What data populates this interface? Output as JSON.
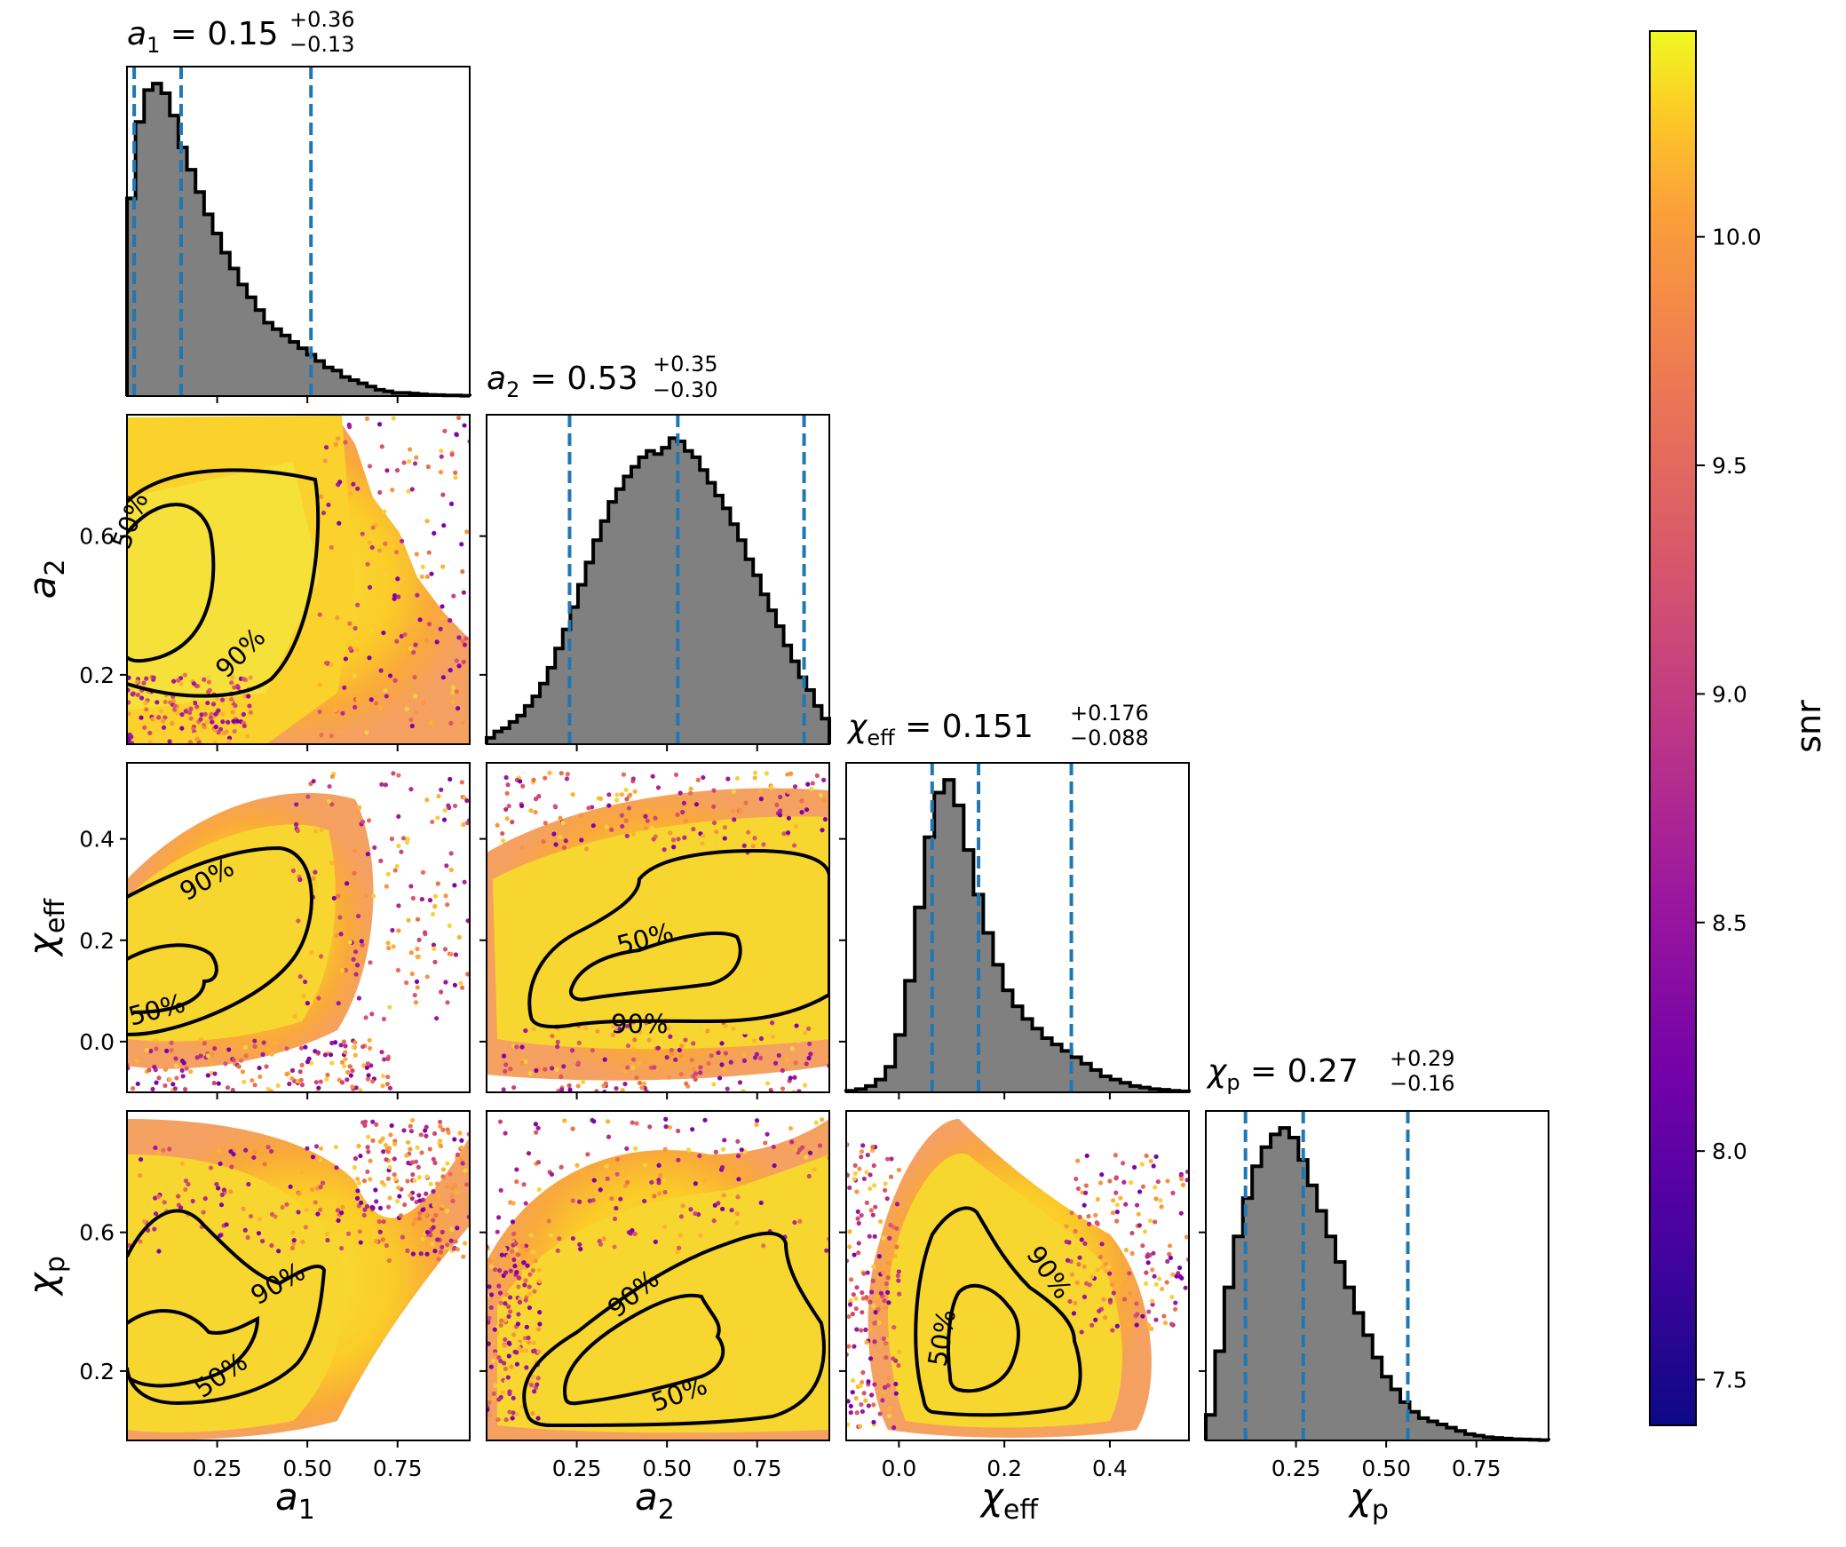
{
  "chart_data": {
    "type": "corner",
    "parameters": [
      {
        "key": "a1",
        "symbol": "a",
        "sub": "1",
        "axis_ticks": [
          "0.25",
          "0.50",
          "0.75"
        ],
        "range": [
          0.0,
          0.95
        ],
        "title": {
          "lhs": "a1",
          "median": "0.15",
          "plus": "+0.36",
          "minus": "−0.13"
        },
        "quantiles": [
          0.02,
          0.15,
          0.51
        ]
      },
      {
        "key": "a2",
        "symbol": "a",
        "sub": "2",
        "axis_ticks": [
          "0.25",
          "0.50",
          "0.75"
        ],
        "range": [
          0.0,
          0.95
        ],
        "title": {
          "lhs": "a2",
          "median": "0.53",
          "plus": "+0.35",
          "minus": "−0.30"
        },
        "quantiles": [
          0.23,
          0.53,
          0.88
        ]
      },
      {
        "key": "chi_eff",
        "symbol": "χ",
        "sub": "eff",
        "axis_ticks": [
          "0.0",
          "0.2",
          "0.4"
        ],
        "range": [
          -0.1,
          0.55
        ],
        "title": {
          "lhs": "χeff",
          "median": "0.151",
          "plus": "+0.176",
          "minus": "−0.088"
        },
        "quantiles": [
          0.063,
          0.151,
          0.327
        ]
      },
      {
        "key": "chi_p",
        "symbol": "χ",
        "sub": "p",
        "axis_ticks": [
          "0.25",
          "0.50",
          "0.75"
        ],
        "range": [
          0.0,
          0.95
        ],
        "title": {
          "lhs": "χp",
          "median": "0.27",
          "plus": "+0.29",
          "minus": "−0.16"
        },
        "quantiles": [
          0.11,
          0.27,
          0.56
        ]
      }
    ],
    "y_axis_ticks": {
      "a2": [
        "0.6",
        "0.2"
      ],
      "chi_eff": [
        "0.4",
        "0.2",
        "0.0"
      ],
      "chi_p": [
        "0.6",
        "0.2"
      ]
    },
    "histograms": {
      "a1": [
        0.62,
        0.86,
        0.96,
        0.98,
        0.95,
        0.88,
        0.78,
        0.71,
        0.64,
        0.57,
        0.51,
        0.45,
        0.4,
        0.35,
        0.31,
        0.27,
        0.23,
        0.21,
        0.19,
        0.17,
        0.15,
        0.13,
        0.11,
        0.09,
        0.08,
        0.06,
        0.05,
        0.04,
        0.03,
        0.02,
        0.015,
        0.01,
        0.01,
        0.008,
        0.006,
        0.004,
        0.003,
        0.002,
        0.002,
        0.001
      ],
      "a2": [
        0.02,
        0.04,
        0.05,
        0.07,
        0.09,
        0.12,
        0.15,
        0.19,
        0.24,
        0.3,
        0.36,
        0.43,
        0.5,
        0.57,
        0.64,
        0.7,
        0.76,
        0.8,
        0.84,
        0.87,
        0.9,
        0.92,
        0.91,
        0.93,
        0.96,
        0.95,
        0.92,
        0.9,
        0.86,
        0.82,
        0.78,
        0.74,
        0.69,
        0.64,
        0.58,
        0.53,
        0.47,
        0.42,
        0.37,
        0.31,
        0.26,
        0.21,
        0.17,
        0.12,
        0.08
      ],
      "chi_eff": [
        0.005,
        0.01,
        0.02,
        0.04,
        0.08,
        0.18,
        0.35,
        0.58,
        0.8,
        0.94,
        0.98,
        0.9,
        0.76,
        0.62,
        0.5,
        0.4,
        0.32,
        0.27,
        0.23,
        0.2,
        0.17,
        0.15,
        0.13,
        0.11,
        0.09,
        0.07,
        0.05,
        0.04,
        0.03,
        0.02,
        0.015,
        0.01,
        0.008,
        0.005,
        0.003
      ],
      "chi_p": [
        0.08,
        0.28,
        0.48,
        0.64,
        0.76,
        0.86,
        0.92,
        0.96,
        0.98,
        0.95,
        0.88,
        0.8,
        0.72,
        0.64,
        0.56,
        0.48,
        0.4,
        0.33,
        0.26,
        0.2,
        0.16,
        0.12,
        0.09,
        0.07,
        0.06,
        0.05,
        0.04,
        0.03,
        0.02,
        0.015,
        0.01,
        0.008,
        0.006,
        0.004,
        0.003,
        0.002,
        0.001
      ]
    },
    "contour_labels": [
      "50%",
      "90%"
    ],
    "colorbar": {
      "label": "snr",
      "ticks": [
        "10.0",
        "9.5",
        "9.0",
        "8.5",
        "8.0",
        "7.5"
      ],
      "range": [
        7.4,
        10.45
      ],
      "colormap": "plasma"
    },
    "colors": {
      "histogram_fill": "#808080",
      "quantile_line": "#1f77b4",
      "contour": "#000000"
    }
  }
}
